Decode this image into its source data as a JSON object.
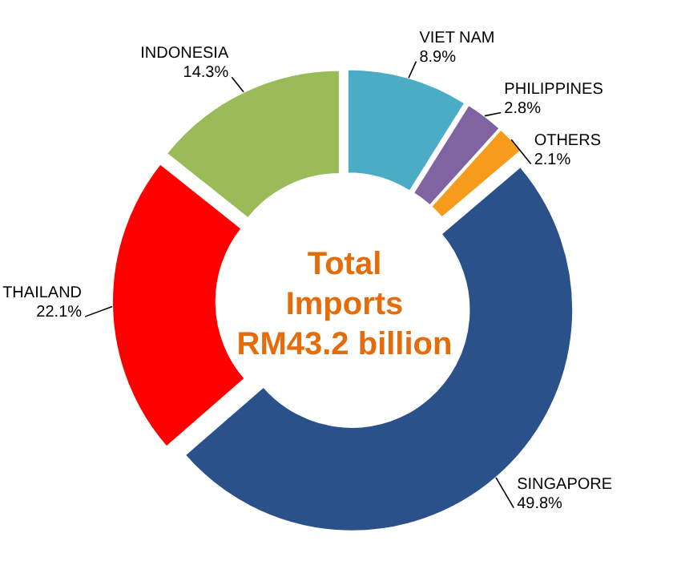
{
  "chart_data": {
    "type": "donut",
    "title": "Total\nImports\nRM43.2 billion",
    "categories": [
      "VIET NAM",
      "PHILIPPINES",
      "OTHERS",
      "SINGAPORE",
      "THAILAND",
      "INDONESIA"
    ],
    "values": [
      8.9,
      2.8,
      2.1,
      49.8,
      22.1,
      14.3
    ],
    "value_labels": [
      "8.9%",
      "2.8%",
      "2.1%",
      "49.8%",
      "22.1%",
      "14.3%"
    ],
    "colors": [
      "#4bacc6",
      "#8064a2",
      "#f79b1c",
      "#2a5189",
      "#ff0000",
      "#9bbb59"
    ]
  }
}
